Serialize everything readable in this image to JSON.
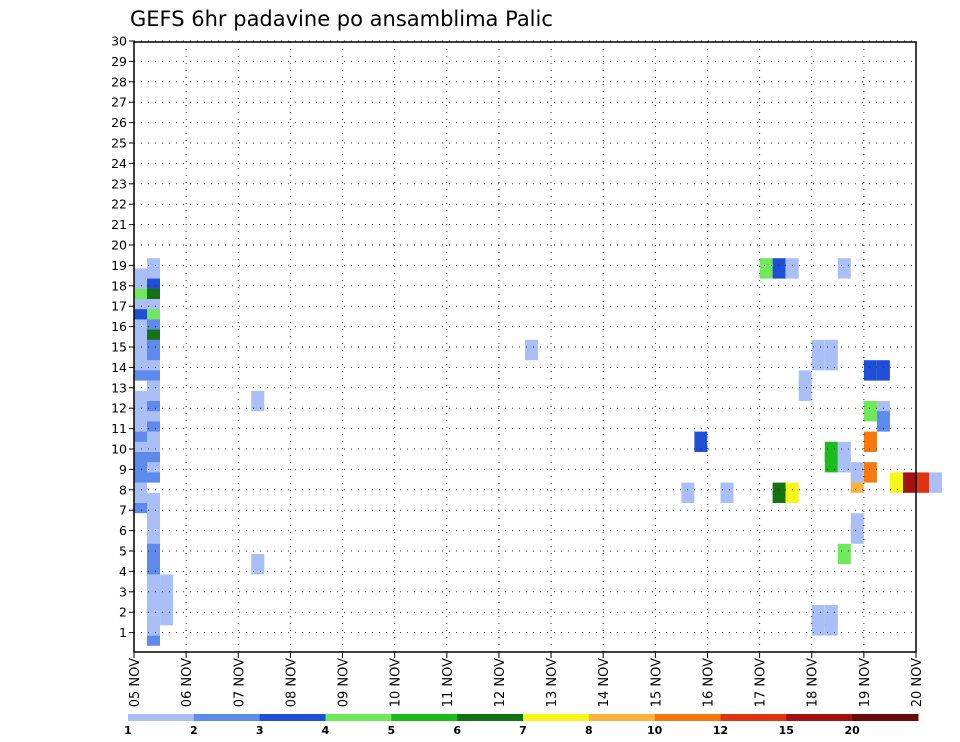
{
  "chart_data": {
    "type": "heatmap",
    "title": "GEFS 6hr padavine po ansamblima Palic",
    "y_ticks": [
      "1",
      "2",
      "3",
      "4",
      "5",
      "6",
      "7",
      "8",
      "9",
      "10",
      "11",
      "12",
      "13",
      "14",
      "15",
      "16",
      "17",
      "18",
      "19",
      "20",
      "21",
      "22",
      "23",
      "24",
      "25",
      "26",
      "27",
      "28",
      "29",
      "30"
    ],
    "x_ticks": [
      "05 NOV",
      "06 NOV",
      "07 NOV",
      "08 NOV",
      "09 NOV",
      "10 NOV",
      "11 NOV",
      "12 NOV",
      "13 NOV",
      "14 NOV",
      "15 NOV",
      "16 NOV",
      "17 NOV",
      "18 NOV",
      "19 NOV",
      "20 NOV"
    ],
    "x_step_hours": 6,
    "colorbar": {
      "tick_labels": [
        "1",
        "2",
        "3",
        "4",
        "5",
        "6",
        "7",
        "8",
        "10",
        "12",
        "15",
        "20"
      ],
      "colors": [
        "#a9bff5",
        "#5d8bec",
        "#1f4fd6",
        "#6fe85a",
        "#1cbb1c",
        "#137313",
        "#f6f618",
        "#fbb23a",
        "#f7780f",
        "#df3413",
        "#a51010",
        "#6a0b0b"
      ]
    },
    "cells": [
      {
        "x": 1,
        "y": 0,
        "c": 1
      },
      {
        "x": 1,
        "y": 1,
        "c": 0
      },
      {
        "x": 2,
        "y": 2,
        "c": 0
      },
      {
        "x": 1,
        "y": 3,
        "c": 0
      },
      {
        "x": 2,
        "y": 3,
        "c": 0
      },
      {
        "x": 1,
        "y": 4,
        "c": 0
      },
      {
        "x": 2,
        "y": 4,
        "c": 0
      },
      {
        "x": 1,
        "y": 5,
        "c": 0
      },
      {
        "x": 2,
        "y": 5,
        "c": 0
      },
      {
        "x": 1,
        "y": 6,
        "c": 0
      },
      {
        "x": 1,
        "y": 7,
        "c": 1
      },
      {
        "x": 1,
        "y": 8,
        "c": 1
      },
      {
        "x": 1,
        "y": 9,
        "c": 1
      },
      {
        "x": 1,
        "y": 10,
        "c": 0
      },
      {
        "x": 1,
        "y": 11,
        "c": 0
      },
      {
        "x": 1,
        "y": 12,
        "c": 0
      },
      {
        "x": 0,
        "y": 13,
        "c": 1
      },
      {
        "x": 1,
        "y": 13,
        "c": 0
      },
      {
        "x": 0,
        "y": 14,
        "c": 0
      },
      {
        "x": 0,
        "y": 15,
        "c": 0
      },
      {
        "x": 0,
        "y": 16,
        "c": 1
      },
      {
        "x": 1,
        "y": 16,
        "c": 1
      },
      {
        "x": 0,
        "y": 17,
        "c": 1
      },
      {
        "x": 1,
        "y": 17,
        "c": 0
      },
      {
        "x": 0,
        "y": 18,
        "c": 1
      },
      {
        "x": 1,
        "y": 18,
        "c": 1
      },
      {
        "x": 0,
        "y": 19,
        "c": 0
      },
      {
        "x": 1,
        "y": 19,
        "c": 0
      },
      {
        "x": 0,
        "y": 20,
        "c": 1
      },
      {
        "x": 1,
        "y": 20,
        "c": 0
      },
      {
        "x": 0,
        "y": 21,
        "c": 0
      },
      {
        "x": 1,
        "y": 21,
        "c": 1
      },
      {
        "x": 0,
        "y": 22,
        "c": 0
      },
      {
        "x": 1,
        "y": 22,
        "c": 0
      },
      {
        "x": 0,
        "y": 23,
        "c": 0
      },
      {
        "x": 1,
        "y": 23,
        "c": 1
      },
      {
        "x": 1,
        "y": 24,
        "c": 0
      },
      {
        "x": 0,
        "y": 26,
        "c": 1
      },
      {
        "x": 1,
        "y": 26,
        "c": 1
      },
      {
        "x": 0,
        "y": 27,
        "c": 0
      },
      {
        "x": 1,
        "y": 27,
        "c": 0
      },
      {
        "x": 1,
        "y": 28,
        "c": 1
      },
      {
        "x": 0,
        "y": 29,
        "c": 0
      },
      {
        "x": 1,
        "y": 29,
        "c": 1
      },
      {
        "x": 0,
        "y": 30,
        "c": 0
      },
      {
        "x": 1,
        "y": 30,
        "c": 5
      },
      {
        "x": 0,
        "y": 31,
        "c": 0
      },
      {
        "x": 1,
        "y": 31,
        "c": 1
      },
      {
        "x": 0,
        "y": 32,
        "c": 2
      },
      {
        "x": 1,
        "y": 32,
        "c": 3
      },
      {
        "x": 0,
        "y": 33,
        "c": 0
      },
      {
        "x": 1,
        "y": 33,
        "c": 0
      },
      {
        "x": 0,
        "y": 34,
        "c": 3
      },
      {
        "x": 1,
        "y": 34,
        "c": 5
      },
      {
        "x": 0,
        "y": 35,
        "c": 0
      },
      {
        "x": 1,
        "y": 35,
        "c": 2
      },
      {
        "x": 1,
        "y": 36,
        "c": 0
      },
      {
        "x": 9,
        "y": 7,
        "c": 0
      },
      {
        "x": 9,
        "y": 23,
        "c": 0
      },
      {
        "x": 30,
        "y": 28,
        "c": 0
      },
      {
        "x": 42,
        "y": 14,
        "c": 0
      },
      {
        "x": 43,
        "y": 19,
        "c": 2
      },
      {
        "x": 45,
        "y": 14,
        "c": 0
      },
      {
        "x": 49,
        "y": 14,
        "c": 5
      },
      {
        "x": 50,
        "y": 14,
        "c": 6
      },
      {
        "x": 51,
        "y": 24,
        "c": 0
      },
      {
        "x": 51,
        "y": 25,
        "c": 0
      },
      {
        "x": 48,
        "y": 36,
        "c": 3
      },
      {
        "x": 49,
        "y": 36,
        "c": 2
      },
      {
        "x": 50,
        "y": 36,
        "c": 0
      },
      {
        "x": 52,
        "y": 1,
        "c": 0
      },
      {
        "x": 52,
        "y": 2,
        "c": 0
      },
      {
        "x": 52,
        "y": 27,
        "c": 0
      },
      {
        "x": 52,
        "y": 28,
        "c": 0
      },
      {
        "x": 53,
        "y": 1,
        "c": 0
      },
      {
        "x": 53,
        "y": 2,
        "c": 0
      },
      {
        "x": 53,
        "y": 27,
        "c": 0
      },
      {
        "x": 53,
        "y": 28,
        "c": 0
      },
      {
        "x": 53,
        "y": 17,
        "c": 4
      },
      {
        "x": 53,
        "y": 18,
        "c": 4
      },
      {
        "x": 54,
        "y": 8,
        "c": 3
      },
      {
        "x": 54,
        "y": 17,
        "c": 0
      },
      {
        "x": 54,
        "y": 18,
        "c": 0
      },
      {
        "x": 54,
        "y": 36,
        "c": 0
      },
      {
        "x": 55,
        "y": 10,
        "c": 0
      },
      {
        "x": 55,
        "y": 11,
        "c": 0
      },
      {
        "x": 55,
        "y": 15,
        "c": 7
      },
      {
        "x": 56,
        "y": 16,
        "c": 8
      },
      {
        "x": 56,
        "y": 19,
        "c": 8
      },
      {
        "x": 56,
        "y": 22,
        "c": 3
      },
      {
        "x": 57,
        "y": 22,
        "c": 0
      },
      {
        "x": 57,
        "y": 21,
        "c": 1
      },
      {
        "x": 58,
        "y": 15,
        "c": 6
      },
      {
        "x": 59,
        "y": 15,
        "c": 10
      },
      {
        "x": 60,
        "y": 15,
        "c": 9
      },
      {
        "x": 61,
        "y": 15,
        "c": 0
      },
      {
        "x": 55,
        "y": 16,
        "c": 0
      },
      {
        "x": 56,
        "y": 26,
        "c": 2
      },
      {
        "x": 57,
        "y": 26,
        "c": 2
      }
    ]
  }
}
